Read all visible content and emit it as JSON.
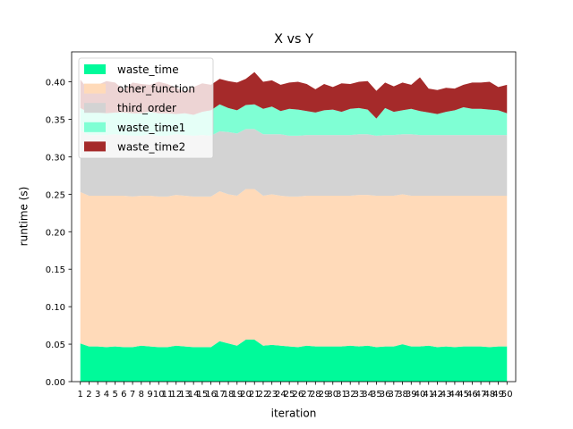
{
  "chart_data": {
    "type": "area",
    "stacked": true,
    "title": "X vs Y",
    "xlabel": "iteration",
    "ylabel": "runtime (s)",
    "ylim": [
      0,
      0.44
    ],
    "xlim": [
      0,
      51
    ],
    "grid": false,
    "legend_position": "top-left",
    "yticks": [
      0.0,
      0.05,
      0.1,
      0.15,
      0.2,
      0.25,
      0.3,
      0.35,
      0.4
    ],
    "ytick_labels": [
      "0.00",
      "0.05",
      "0.10",
      "0.15",
      "0.20",
      "0.25",
      "0.30",
      "0.35",
      "0.40"
    ],
    "x": [
      1,
      2,
      3,
      4,
      5,
      6,
      7,
      8,
      9,
      10,
      11,
      12,
      13,
      14,
      15,
      16,
      17,
      18,
      19,
      20,
      21,
      22,
      23,
      24,
      25,
      26,
      27,
      28,
      29,
      30,
      31,
      32,
      33,
      34,
      35,
      36,
      37,
      38,
      39,
      40,
      41,
      42,
      43,
      44,
      45,
      46,
      47,
      48,
      49,
      50
    ],
    "series": [
      {
        "name": "waste_time",
        "color": "#00fa9a",
        "values": [
          0.051,
          0.047,
          0.047,
          0.046,
          0.047,
          0.046,
          0.046,
          0.048,
          0.047,
          0.046,
          0.046,
          0.048,
          0.047,
          0.046,
          0.046,
          0.046,
          0.054,
          0.051,
          0.048,
          0.056,
          0.056,
          0.048,
          0.049,
          0.048,
          0.047,
          0.046,
          0.048,
          0.047,
          0.047,
          0.047,
          0.047,
          0.048,
          0.047,
          0.048,
          0.046,
          0.047,
          0.047,
          0.05,
          0.047,
          0.047,
          0.048,
          0.046,
          0.047,
          0.046,
          0.047,
          0.047,
          0.047,
          0.046,
          0.047,
          0.047
        ]
      },
      {
        "name": "other_function",
        "color": "#ffdab9",
        "values": [
          0.202,
          0.201,
          0.201,
          0.202,
          0.201,
          0.202,
          0.201,
          0.2,
          0.201,
          0.201,
          0.201,
          0.201,
          0.201,
          0.201,
          0.201,
          0.201,
          0.2,
          0.199,
          0.2,
          0.201,
          0.201,
          0.2,
          0.201,
          0.2,
          0.2,
          0.201,
          0.2,
          0.201,
          0.201,
          0.201,
          0.201,
          0.2,
          0.202,
          0.201,
          0.202,
          0.201,
          0.201,
          0.2,
          0.201,
          0.201,
          0.2,
          0.202,
          0.201,
          0.202,
          0.201,
          0.201,
          0.201,
          0.202,
          0.201,
          0.201
        ]
      },
      {
        "name": "third_order",
        "color": "#d3d3d3",
        "values": [
          0.082,
          0.081,
          0.081,
          0.081,
          0.082,
          0.081,
          0.081,
          0.08,
          0.082,
          0.081,
          0.081,
          0.081,
          0.081,
          0.081,
          0.082,
          0.081,
          0.08,
          0.083,
          0.083,
          0.08,
          0.08,
          0.082,
          0.08,
          0.082,
          0.081,
          0.081,
          0.081,
          0.081,
          0.081,
          0.081,
          0.081,
          0.081,
          0.081,
          0.081,
          0.08,
          0.081,
          0.081,
          0.08,
          0.082,
          0.081,
          0.081,
          0.081,
          0.081,
          0.081,
          0.081,
          0.081,
          0.081,
          0.081,
          0.081,
          0.081
        ]
      },
      {
        "name": "waste_time1",
        "color": "#7fffd4",
        "values": [
          0.03,
          0.03,
          0.03,
          0.029,
          0.029,
          0.03,
          0.03,
          0.03,
          0.03,
          0.03,
          0.03,
          0.027,
          0.029,
          0.028,
          0.031,
          0.034,
          0.036,
          0.032,
          0.031,
          0.032,
          0.033,
          0.034,
          0.037,
          0.031,
          0.036,
          0.035,
          0.032,
          0.03,
          0.033,
          0.034,
          0.031,
          0.035,
          0.035,
          0.033,
          0.023,
          0.036,
          0.031,
          0.032,
          0.034,
          0.032,
          0.03,
          0.028,
          0.031,
          0.033,
          0.037,
          0.035,
          0.035,
          0.034,
          0.033,
          0.029
        ]
      },
      {
        "name": "waste_time2",
        "color": "#a52a2a",
        "values": [
          0.038,
          0.029,
          0.037,
          0.043,
          0.04,
          0.03,
          0.041,
          0.039,
          0.036,
          0.042,
          0.039,
          0.035,
          0.029,
          0.037,
          0.038,
          0.034,
          0.034,
          0.036,
          0.037,
          0.035,
          0.043,
          0.036,
          0.035,
          0.035,
          0.035,
          0.037,
          0.036,
          0.031,
          0.035,
          0.03,
          0.038,
          0.033,
          0.035,
          0.038,
          0.037,
          0.034,
          0.034,
          0.037,
          0.032,
          0.045,
          0.032,
          0.032,
          0.032,
          0.029,
          0.03,
          0.035,
          0.035,
          0.037,
          0.031,
          0.038
        ]
      }
    ]
  }
}
